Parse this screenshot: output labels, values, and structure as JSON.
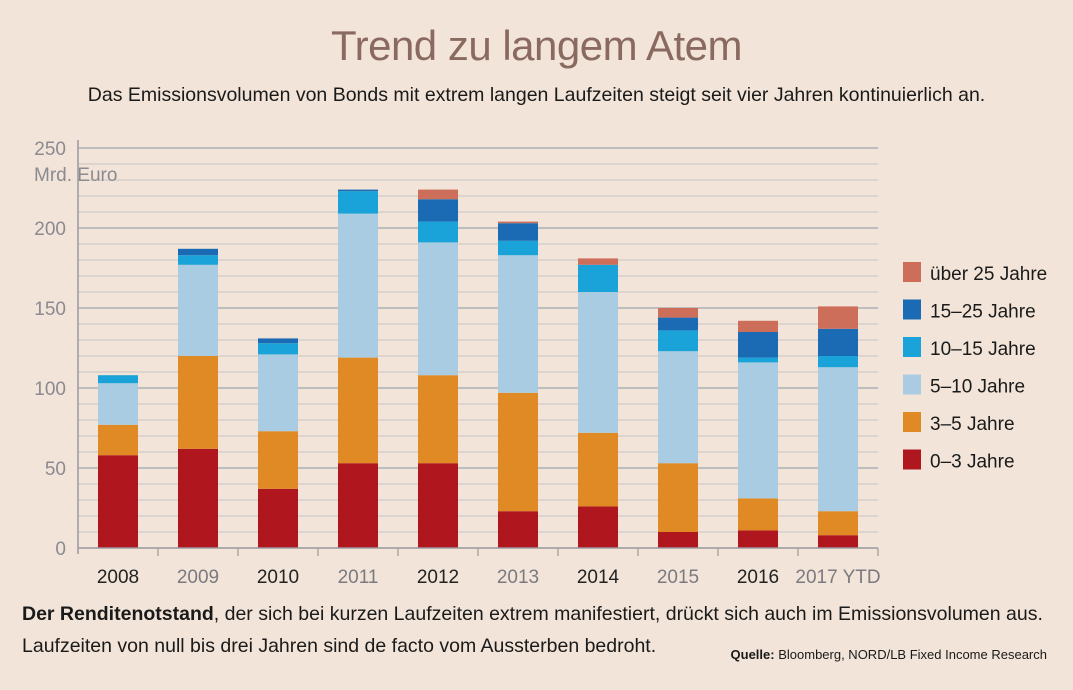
{
  "title": "Trend zu langem Atem",
  "subtitle": "Das Emissionsvolumen von Bonds mit extrem langen Laufzeiten steigt seit vier Jahren kontinuierlich an.",
  "footer": {
    "bold": "Der Renditenotstand",
    "line1_rest": ", der sich bei kurzen Laufzeiten extrem manifestiert, drückt sich auch im Emissionsvolumen aus.",
    "line2": "Laufzeiten von null bis drei Jahren sind de facto vom Aussterben bedroht."
  },
  "source": {
    "label": "Quelle:",
    "text": "Bloomberg, NORD/LB Fixed Income Research"
  },
  "colors": {
    "background": "#f2e4d8",
    "gridline": "#b8b8be",
    "axis": "#9a9aa0"
  },
  "chart_data": {
    "type": "bar",
    "stacked": true,
    "ylabel": "Mrd. Euro",
    "ylim": [
      0,
      250
    ],
    "yticks": [
      0,
      50,
      100,
      150,
      200,
      250
    ],
    "categories": [
      "2008",
      "2009",
      "2010",
      "2011",
      "2012",
      "2013",
      "2014",
      "2015",
      "2016",
      "2017 YTD"
    ],
    "category_colors": [
      "#222222",
      "#7a7a80",
      "#222222",
      "#7a7a80",
      "#222222",
      "#7a7a80",
      "#222222",
      "#7a7a80",
      "#222222",
      "#7a7a80"
    ],
    "legend_position": "right",
    "series": [
      {
        "name": "0–3 Jahre",
        "color": "#b0161e",
        "values": [
          58,
          62,
          37,
          53,
          53,
          23,
          26,
          10,
          11,
          8
        ]
      },
      {
        "name": "3–5 Jahre",
        "color": "#e08a25",
        "values": [
          19,
          58,
          36,
          66,
          55,
          74,
          46,
          43,
          20,
          15
        ]
      },
      {
        "name": "5–10 Jahre",
        "color": "#a9cce3",
        "values": [
          26,
          57,
          48,
          90,
          83,
          86,
          88,
          70,
          85,
          90
        ]
      },
      {
        "name": "10–15 Jahre",
        "color": "#1aa3d8",
        "values": [
          5,
          6,
          7,
          14,
          13,
          9,
          17,
          13,
          3,
          7
        ]
      },
      {
        "name": "15–25 Jahre",
        "color": "#1b6bb4",
        "values": [
          0,
          4,
          3,
          1,
          14,
          11,
          0,
          8,
          16,
          17
        ]
      },
      {
        "name": "über 25 Jahre",
        "color": "#cd6e5a",
        "values": [
          0,
          0,
          0,
          0,
          6,
          1,
          4,
          6,
          7,
          14
        ]
      }
    ]
  }
}
